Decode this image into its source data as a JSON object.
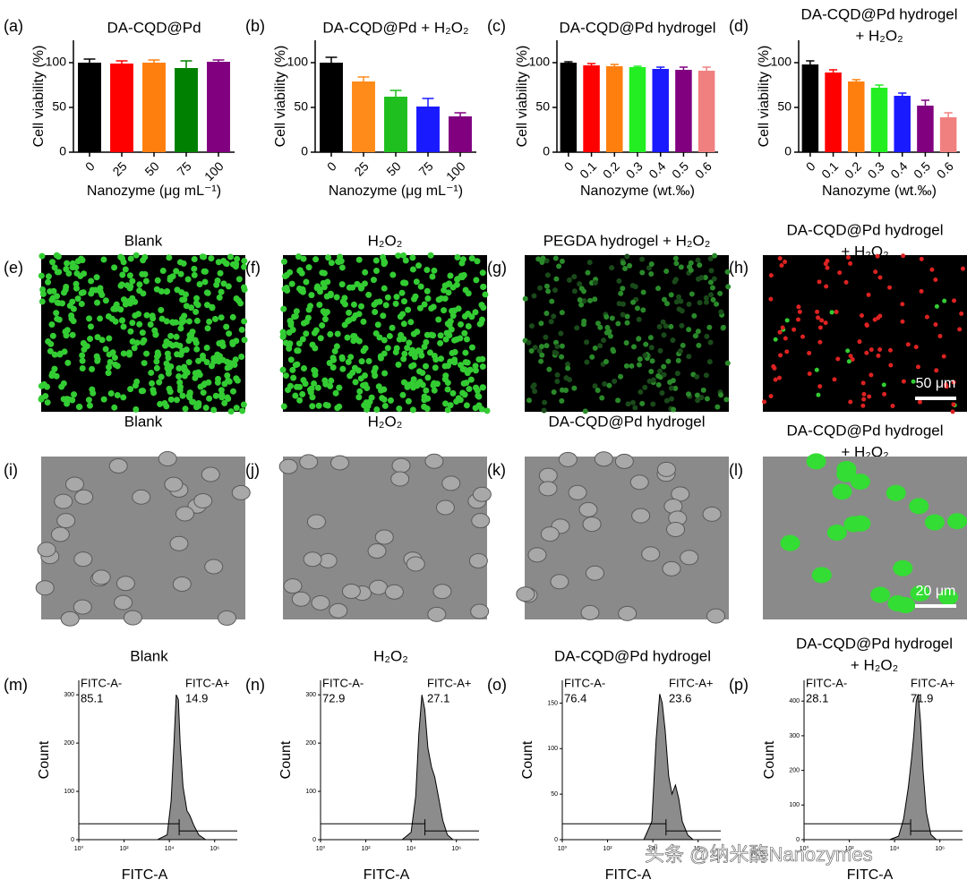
{
  "chart_data": [
    {
      "type": "bar",
      "label": "(a)",
      "title": [
        "DA-CQD@Pd"
      ],
      "y_label": "Cell viability (%)",
      "x_label": "Nanozyme (μg mL⁻¹)",
      "categories": [
        "0",
        "25",
        "50",
        "75",
        "100"
      ],
      "values": [
        100,
        99,
        100,
        94,
        101
      ],
      "errors": [
        4,
        3,
        3,
        8,
        2
      ],
      "colors": [
        "#000000",
        "#ff0000",
        "#ff7f0e",
        "#008000",
        "#800080"
      ],
      "ylim": [
        0,
        125
      ],
      "yticks": [
        0,
        50,
        100
      ]
    },
    {
      "type": "bar",
      "label": "(b)",
      "title": [
        "DA-CQD@Pd + H₂O₂"
      ],
      "y_label": "Cell viability (%)",
      "x_label": "Nanozyme (μg mL⁻¹)",
      "categories": [
        "0",
        "25",
        "50",
        "75",
        "100"
      ],
      "values": [
        100,
        79,
        62,
        51,
        40
      ],
      "errors": [
        6,
        5,
        7,
        9,
        4
      ],
      "colors": [
        "#000000",
        "#ff8c1a",
        "#1fbf1f",
        "#1a1aff",
        "#800080"
      ],
      "ylim": [
        0,
        125
      ],
      "yticks": [
        0,
        50,
        100
      ]
    },
    {
      "type": "bar",
      "label": "(c)",
      "title": [
        "DA-CQD@Pd hydrogel"
      ],
      "y_label": "Cell viability (%)",
      "x_label": "Nanozyme (wt.‰)",
      "categories": [
        "0",
        "0.1",
        "0.2",
        "0.3",
        "0.4",
        "0.5",
        "0.6"
      ],
      "values": [
        100,
        97,
        96,
        95,
        93,
        92,
        91
      ],
      "errors": [
        1,
        2,
        2,
        1,
        2,
        3,
        4
      ],
      "colors": [
        "#000000",
        "#ff0000",
        "#ff7f0e",
        "#22ee22",
        "#1a1aff",
        "#800080",
        "#f08080"
      ],
      "ylim": [
        0,
        125
      ],
      "yticks": [
        0,
        50,
        100
      ]
    },
    {
      "type": "bar",
      "label": "(d)",
      "title": [
        "DA-CQD@Pd hydrogel",
        "+ H₂O₂"
      ],
      "y_label": "Cell viability (%)",
      "x_label": "Nanozyme (wt.‰)",
      "categories": [
        "0",
        "0.1",
        "0.2",
        "0.3",
        "0.4",
        "0.5",
        "0.6"
      ],
      "values": [
        98,
        89,
        79,
        72,
        63,
        52,
        39
      ],
      "errors": [
        4,
        3,
        2,
        3,
        3,
        6,
        5
      ],
      "colors": [
        "#000000",
        "#ff0000",
        "#ff7f0e",
        "#22ee22",
        "#1a1aff",
        "#800080",
        "#f08080"
      ],
      "ylim": [
        0,
        125
      ],
      "yticks": [
        0,
        50,
        100
      ]
    },
    {
      "type": "area",
      "label": "(m)",
      "title": [
        "Blank"
      ],
      "y_label": "Count",
      "x_label": "FITC-A",
      "log_x": true,
      "x": [
        3000,
        8000,
        12000,
        16000,
        20000,
        25000,
        30000,
        40000,
        60000,
        80000,
        120000,
        200000,
        400000
      ],
      "values": [
        0,
        10,
        80,
        200,
        300,
        290,
        200,
        110,
        60,
        50,
        30,
        10,
        0
      ],
      "xlim": [
        1,
        10000000
      ],
      "xticks": [
        {
          "value": 1,
          "label": "10⁰"
        },
        {
          "value": 100,
          "label": "10²"
        },
        {
          "value": 10000,
          "label": "10⁴"
        },
        {
          "value": 1000000,
          "label": "10⁶"
        }
      ],
      "ylim": [
        0,
        330
      ],
      "yticks": [
        0,
        100,
        200,
        300
      ],
      "gate_labels": {
        "left": "FITC-A-",
        "left_value": 85.1,
        "right": "FITC-A+",
        "right_value": 14.9
      }
    },
    {
      "type": "area",
      "label": "(n)",
      "title": [
        "H₂O₂"
      ],
      "y_label": "Count",
      "x_label": "FITC-A",
      "log_x": true,
      "x": [
        4000,
        10000,
        16000,
        22000,
        30000,
        40000,
        55000,
        80000,
        110000,
        160000,
        250000,
        400000,
        700000
      ],
      "values": [
        0,
        15,
        90,
        220,
        300,
        270,
        190,
        150,
        130,
        90,
        40,
        10,
        0
      ],
      "xlim": [
        1,
        10000000
      ],
      "xticks": [
        {
          "value": 1,
          "label": "10⁰"
        },
        {
          "value": 100,
          "label": "10²"
        },
        {
          "value": 10000,
          "label": "10⁴"
        },
        {
          "value": 1000000,
          "label": "10⁶"
        }
      ],
      "ylim": [
        0,
        330
      ],
      "yticks": [
        0,
        100,
        200,
        300
      ],
      "gate_labels": {
        "left": "FITC-A-",
        "left_value": 72.9,
        "right": "FITC-A+",
        "right_value": 27.1
      }
    },
    {
      "type": "area",
      "label": "(o)",
      "title": [
        "DA-CQD@Pd hydrogel"
      ],
      "y_label": "Count",
      "x_label": "FITC-A",
      "log_x": true,
      "x": [
        4000,
        9000,
        14000,
        20000,
        26000,
        35000,
        50000,
        70000,
        100000,
        140000,
        200000,
        350000,
        600000
      ],
      "values": [
        0,
        20,
        110,
        160,
        150,
        120,
        70,
        50,
        60,
        45,
        20,
        5,
        0
      ],
      "xlim": [
        1,
        10000000
      ],
      "xticks": [
        {
          "value": 1,
          "label": "10⁰"
        },
        {
          "value": 100,
          "label": "10²"
        },
        {
          "value": 10000,
          "label": "10⁴"
        },
        {
          "value": 1000000,
          "label": "10⁶"
        }
      ],
      "ylim": [
        0,
        175
      ],
      "yticks": [
        0,
        50,
        100,
        150
      ],
      "gate_labels": {
        "left": "FITC-A-",
        "left_value": 76.4,
        "right": "FITC-A+",
        "right_value": 23.6
      }
    },
    {
      "type": "area",
      "label": "(p)",
      "title": [
        "DA-CQD@Pd hydrogel",
        "+ H₂O₂"
      ],
      "y_label": "Count",
      "x_label": "FITC-A",
      "log_x": true,
      "x": [
        6000,
        15000,
        25000,
        40000,
        55000,
        70000,
        90000,
        110000,
        140000,
        180000,
        250000,
        400000,
        700000
      ],
      "values": [
        0,
        10,
        60,
        150,
        230,
        300,
        400,
        420,
        340,
        200,
        80,
        15,
        0
      ],
      "xlim": [
        1,
        10000000
      ],
      "xticks": [
        {
          "value": 1,
          "label": "10⁰"
        },
        {
          "value": 100,
          "label": "10²"
        },
        {
          "value": 10000,
          "label": "10⁴"
        },
        {
          "value": 1000000,
          "label": "10⁶"
        }
      ],
      "ylim": [
        0,
        460
      ],
      "yticks": [
        0,
        100,
        200,
        300,
        400
      ],
      "gate_labels": {
        "left": "FITC-A-",
        "left_value": 28.1,
        "right": "FITC-A+",
        "right_value": 71.9
      }
    }
  ],
  "image_panels": [
    {
      "label": "(e)",
      "title": [
        "Blank"
      ],
      "style": "green"
    },
    {
      "label": "(f)",
      "title": [
        "H₂O₂"
      ],
      "style": "green"
    },
    {
      "label": "(g)",
      "title": [
        "PEGDA hydrogel + H₂O₂"
      ],
      "style": "dimgreen"
    },
    {
      "label": "(h)",
      "title": [
        "DA-CQD@Pd hydrogel",
        "+ H₂O₂"
      ],
      "style": "red",
      "scale_bar": "50 μm"
    },
    {
      "label": "(i)",
      "title": [
        "Blank"
      ],
      "style": "dic"
    },
    {
      "label": "(j)",
      "title": [
        "H₂O₂"
      ],
      "style": "dic"
    },
    {
      "label": "(k)",
      "title": [
        "DA-CQD@Pd hydrogel"
      ],
      "style": "dic"
    },
    {
      "label": "(l)",
      "title": [
        "DA-CQD@Pd hydrogel",
        "+ H₂O₂"
      ],
      "style": "blob",
      "scale_bar": "20 μm"
    }
  ],
  "watermark": "头条 @纳米酶Nanozymes"
}
